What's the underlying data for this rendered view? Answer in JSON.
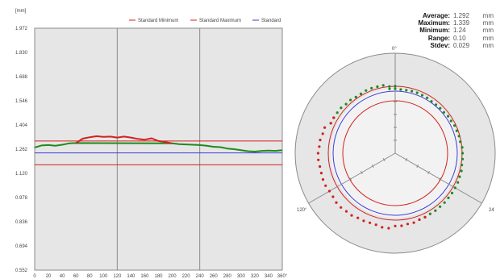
{
  "chart_data": [
    {
      "type": "line",
      "ylabel": "[mm]",
      "xlabel": "",
      "x_ticks": [
        "0",
        "20",
        "40",
        "60",
        "80",
        "100",
        "120",
        "140",
        "160",
        "180",
        "200",
        "220",
        "240",
        "260",
        "280",
        "300",
        "320",
        "340",
        "360°"
      ],
      "y_ticks": [
        "1.972",
        "1.830",
        "1.688",
        "1.546",
        "1.404",
        "1.262",
        "1.120",
        "0.978",
        "0.836",
        "0.694",
        "0.552"
      ],
      "xlim": [
        0,
        360
      ],
      "ylim": [
        0.552,
        1.972
      ],
      "grid": true,
      "legend": {
        "placement": "top-right",
        "entries": [
          "Standard Minimum",
          "Standard Maximum",
          "Standard"
        ]
      },
      "reference_lines": {
        "standard_maximum": 1.31,
        "standard_minimum": 1.17,
        "standard": 1.24
      },
      "series": [
        {
          "color": "#1e8a1e",
          "x": [
            0,
            10,
            20,
            30,
            40,
            50,
            60,
            200,
            210,
            220,
            230,
            240,
            250,
            260,
            270,
            280,
            290,
            300,
            310,
            320,
            330,
            340,
            350,
            360
          ],
          "y": [
            1.272,
            1.284,
            1.286,
            1.282,
            1.288,
            1.296,
            1.298,
            1.296,
            1.292,
            1.29,
            1.288,
            1.286,
            1.282,
            1.276,
            1.274,
            1.266,
            1.262,
            1.256,
            1.25,
            1.248,
            1.252,
            1.254,
            1.252,
            1.256
          ]
        },
        {
          "color": "#d42020",
          "x": [
            60,
            70,
            80,
            90,
            100,
            110,
            120,
            130,
            140,
            150,
            160,
            170,
            180,
            190,
            200
          ],
          "y": [
            1.298,
            1.324,
            1.332,
            1.338,
            1.334,
            1.336,
            1.33,
            1.336,
            1.33,
            1.322,
            1.318,
            1.326,
            1.31,
            1.304,
            1.296
          ]
        }
      ]
    },
    {
      "type": "polar",
      "angle_labels": [
        "0°",
        "120°",
        "24"
      ],
      "rings": [
        "outer",
        "red",
        "blue",
        "red_inner"
      ],
      "stats": [
        {
          "label": "Average:",
          "value": "1.292",
          "unit": "mm"
        },
        {
          "label": "Maximum:",
          "value": "1.339",
          "unit": "mm"
        },
        {
          "label": "Minimum:",
          "value": "1.24",
          "unit": "mm"
        },
        {
          "label": "Range:",
          "value": "0.10",
          "unit": "mm"
        },
        {
          "label": "Stdev:",
          "value": "0.029",
          "unit": "mm"
        }
      ],
      "colors": {
        "in_tolerance": "#1e8a1e",
        "out_of_tolerance": "#d42020",
        "standard": "#3b3bdd",
        "limits": "#d42020"
      }
    }
  ]
}
